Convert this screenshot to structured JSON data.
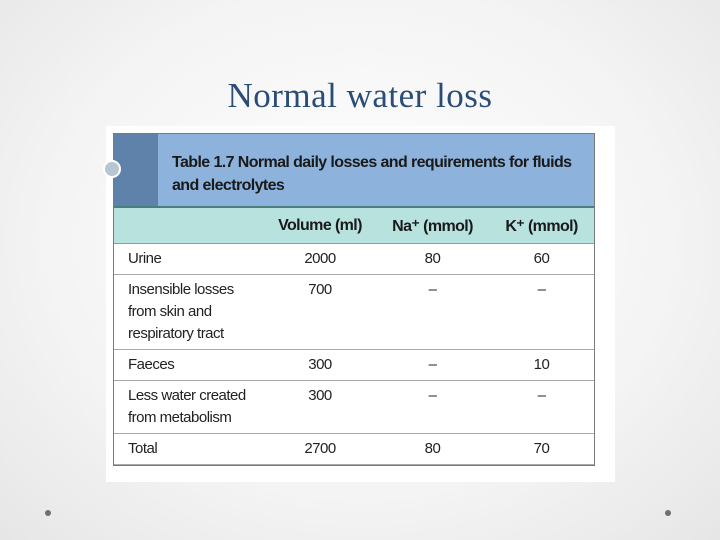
{
  "slide": {
    "title": "Normal water loss"
  },
  "table": {
    "label": "Table 1.7",
    "caption": "Normal daily losses and requirements for fluids and electrolytes",
    "headers": [
      "",
      "Volume (ml)",
      "Na⁺ (mmol)",
      "K⁺ (mmol)"
    ],
    "rows": [
      [
        "Urine",
        2000,
        80,
        60
      ],
      [
        "Insensible losses from skin and respiratory tract",
        700,
        "–",
        "–"
      ],
      [
        "Faeces",
        300,
        "–",
        10
      ],
      [
        "Less water created from metabolism",
        300,
        "–",
        "–"
      ],
      [
        "Total",
        2700,
        80,
        70
      ]
    ]
  }
}
